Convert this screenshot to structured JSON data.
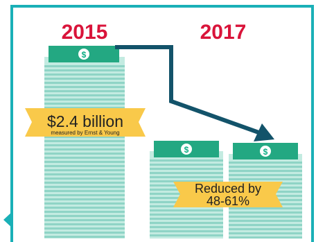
{
  "years": {
    "before": "2015",
    "after": "2017"
  },
  "labels": {
    "amount": "$2.4 billion",
    "source": "measured by Ernst & Young",
    "reduction_line1": "Reduced by",
    "reduction_line2": "48-61%"
  },
  "icons": {
    "money_stack": "dollar-bill-stack-icon",
    "arrow": "trend-down-arrow-icon",
    "dollar_badge": "dollar-sign-icon"
  },
  "colors": {
    "frame": "#1ab0b7",
    "year_text": "#d9143a",
    "bill_light": "#c3ebe1",
    "bill_line": "#8fd4c6",
    "bill_top": "#23a882",
    "bill_badge": "#0fae85",
    "arrow": "#13536a",
    "banner": "#f9c94a"
  }
}
